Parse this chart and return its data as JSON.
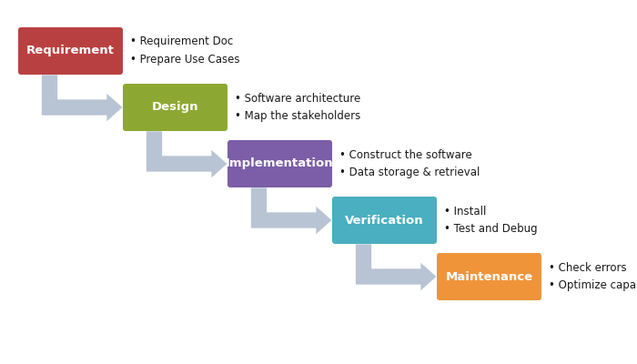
{
  "phases": [
    {
      "label": "Requirement",
      "color": "#b94040",
      "bullet1": "Requirement Doc",
      "bullet2": "Prepare Use Cases"
    },
    {
      "label": "Design",
      "color": "#8da832",
      "bullet1": "Software architecture",
      "bullet2": "Map the stakeholders"
    },
    {
      "label": "Implementation",
      "color": "#7b5ea7",
      "bullet1": "Construct the software",
      "bullet2": "Data storage & retrieval"
    },
    {
      "label": "Verification",
      "color": "#4aafc0",
      "bullet1": "Install",
      "bullet2": "Test and Debug"
    },
    {
      "label": "Maintenance",
      "color": "#f0943a",
      "bullet1": "Check errors",
      "bullet2": "Optimize capabilities"
    }
  ],
  "background_color": "#ffffff",
  "text_color": "#1a1a1a",
  "label_color": "#ffffff",
  "arrow_color": "#b8c4d4",
  "bullet_fontsize": 8.5,
  "label_fontsize": 9.5
}
